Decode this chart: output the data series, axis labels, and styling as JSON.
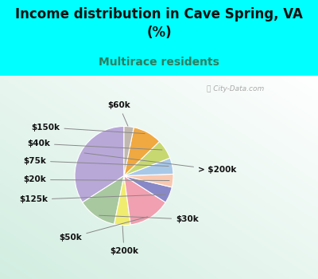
{
  "title": "Income distribution in Cave Spring, VA\n(%)",
  "subtitle": "Multirace residents",
  "title_color": "#111111",
  "subtitle_color": "#2e7d5e",
  "bg_cyan": "#00ffff",
  "labels": [
    "> $200k",
    "$30k",
    "$200k",
    "$50k",
    "$125k",
    "$20k",
    "$75k",
    "$40k",
    "$150k",
    "$60k"
  ],
  "values": [
    32,
    12,
    5,
    13,
    5,
    4,
    5,
    6,
    9,
    3
  ],
  "colors": [
    "#b8a8d8",
    "#a8c8a0",
    "#f0ec70",
    "#f0a0b0",
    "#8888c8",
    "#f8c8b0",
    "#a8c8e8",
    "#c8d870",
    "#f0a840",
    "#c0b8b0"
  ],
  "startangle": 90,
  "label_data": {
    "> $200k": [
      1.5,
      0.12,
      "left"
    ],
    "$30k": [
      1.05,
      -0.88,
      "left"
    ],
    "$200k": [
      0.0,
      -1.52,
      "center"
    ],
    "$50k": [
      -0.85,
      -1.25,
      "right"
    ],
    "$125k": [
      -1.55,
      -0.48,
      "right"
    ],
    "$20k": [
      -1.58,
      -0.08,
      "right"
    ],
    "$75k": [
      -1.58,
      0.3,
      "right"
    ],
    "$40k": [
      -1.5,
      0.65,
      "right"
    ],
    "$150k": [
      -1.3,
      0.98,
      "right"
    ],
    "$60k": [
      -0.1,
      1.42,
      "center"
    ]
  }
}
